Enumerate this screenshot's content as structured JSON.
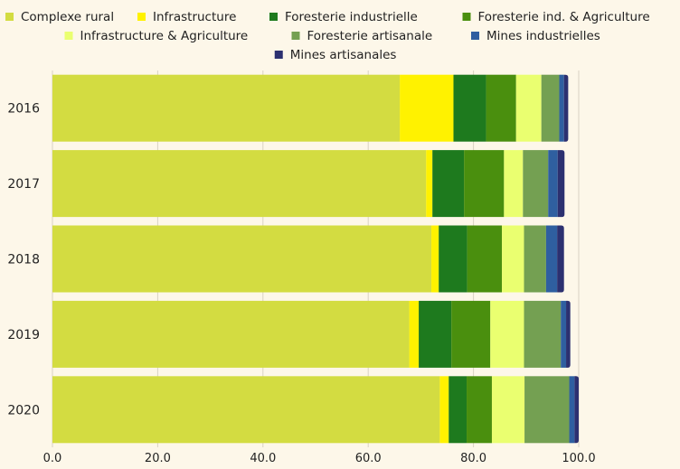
{
  "chart_data": {
    "type": "bar",
    "orientation": "horizontal",
    "stacked": true,
    "title": "",
    "xlabel": "",
    "ylabel": "",
    "categories": [
      "2016",
      "2017",
      "2018",
      "2019",
      "2020"
    ],
    "xlim": [
      0,
      100
    ],
    "x_ticks": [
      "0.0",
      "20.0",
      "40.0",
      "60.0",
      "80.0",
      "100.0"
    ],
    "grid": true,
    "legend_position": "top",
    "series": [
      {
        "name": "Complexe rural",
        "color": "#d3dc41",
        "values": [
          66.0,
          71.0,
          72.0,
          67.8,
          73.6
        ]
      },
      {
        "name": "Infrastructure",
        "color": "#fff200",
        "values": [
          10.2,
          1.2,
          1.4,
          1.8,
          1.7
        ]
      },
      {
        "name": "Foresterie industrielle",
        "color": "#1e7a1e",
        "values": [
          6.2,
          6.0,
          5.4,
          6.2,
          3.4
        ]
      },
      {
        "name": "Foresterie ind. & Agriculture",
        "color": "#4a8f0e",
        "values": [
          5.7,
          7.6,
          6.6,
          7.4,
          4.8
        ]
      },
      {
        "name": "Infrastructure & Agriculture",
        "color": "#eaff70",
        "values": [
          4.8,
          3.6,
          4.2,
          6.4,
          6.2
        ]
      },
      {
        "name": "Foresterie artisanale",
        "color": "#74a052",
        "values": [
          3.4,
          4.8,
          4.2,
          7.0,
          8.5
        ]
      },
      {
        "name": "Mines industrielles",
        "color": "#2f5fa0",
        "values": [
          0.9,
          1.8,
          2.1,
          1.0,
          1.0
        ]
      },
      {
        "name": "Mines artisanales",
        "color": "#2c3070",
        "values": [
          0.8,
          1.3,
          1.3,
          0.8,
          0.8
        ]
      }
    ]
  }
}
